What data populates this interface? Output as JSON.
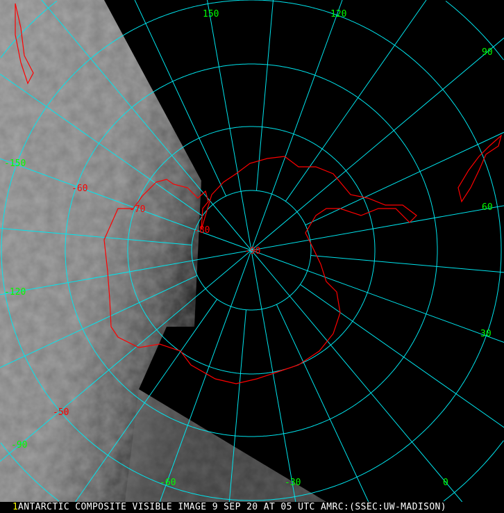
{
  "caption": "ANTARCTIC COMPOSITE VISIBLE IMAGE 9 SEP 20 AT 05 UTC AMRC:(SSEC:UW-MADISON)",
  "caption_marker": "1",
  "colors": {
    "grid": "#00e5ee",
    "coastline": "#ff0000",
    "longitude_labels": "#00ff00",
    "latitude_labels": "#ff0000"
  },
  "latitude_labels": [
    "-90",
    "-80",
    "-70",
    "-60",
    "-50"
  ],
  "longitude_labels": [
    "150",
    "120",
    "90",
    "60",
    "30",
    "0",
    "-30",
    "-60",
    "-90",
    "-120",
    "-150"
  ],
  "projection": "south polar stereographic"
}
